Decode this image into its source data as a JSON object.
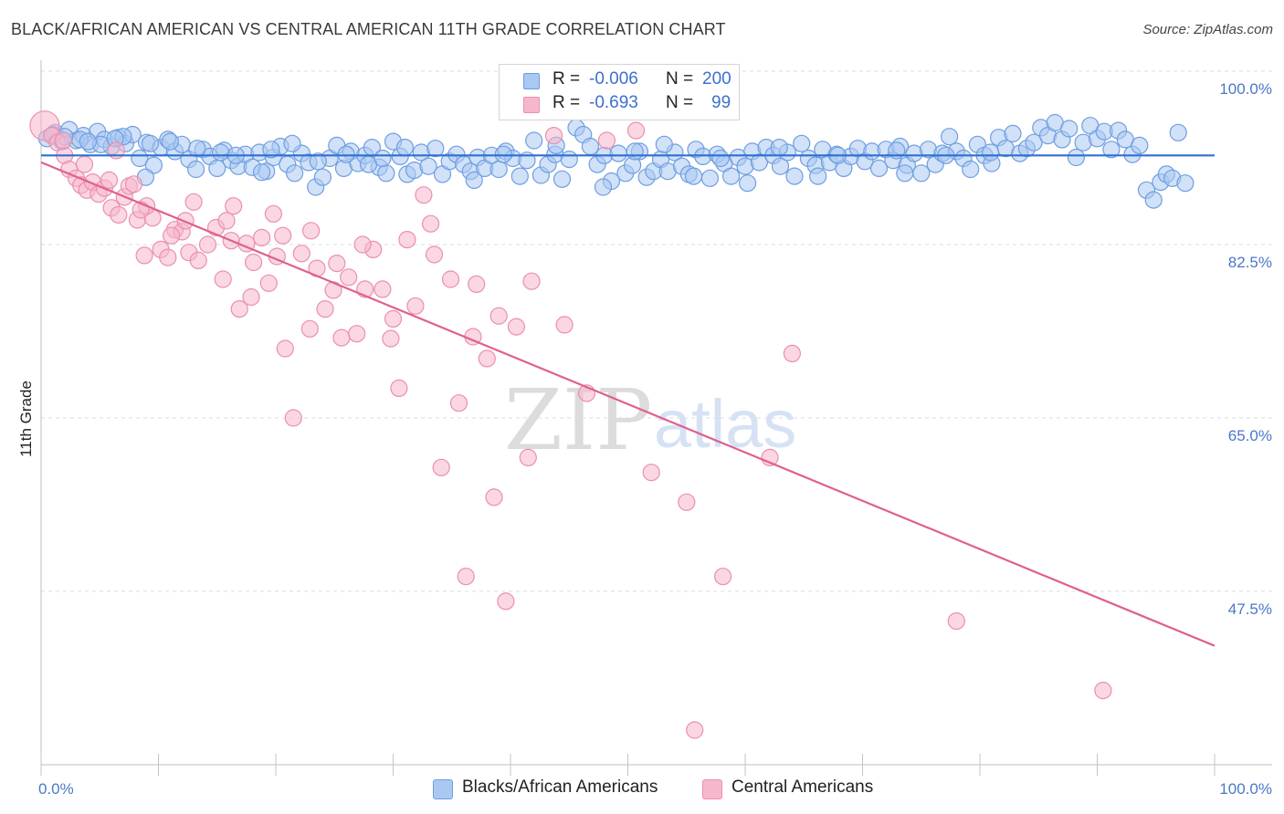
{
  "header": {
    "title": "BLACK/AFRICAN AMERICAN VS CENTRAL AMERICAN 11TH GRADE CORRELATION CHART",
    "source": "Source: ZipAtlas.com"
  },
  "legend": {
    "rows": [
      {
        "r_label": "R =",
        "r_value": "-0.006",
        "n_label": "N =",
        "n_value": "200"
      },
      {
        "r_label": "R =",
        "r_value": "-0.693",
        "n_label": "N =",
        "n_value": "99"
      }
    ]
  },
  "bottom_legend": {
    "items": [
      "Blacks/African Americans",
      "Central Americans"
    ]
  },
  "watermark": {
    "zip": "ZIP",
    "atlas": "atlas"
  },
  "colors": {
    "blue_fill": "#a9c8f2",
    "blue_stroke": "#6f9ee0",
    "blue_line": "#2f6fcf",
    "pink_fill": "#f6b7cc",
    "pink_stroke": "#eb8fae",
    "pink_line": "#e0608e",
    "axis_text": "#4a78c8",
    "grid": "#dddddd"
  },
  "chart_data": {
    "type": "scatter",
    "title": "BLACK/AFRICAN AMERICAN VS CENTRAL AMERICAN 11TH GRADE CORRELATION CHART",
    "xlabel": "",
    "ylabel": "11th Grade",
    "xlim": [
      0,
      100
    ],
    "ylim": [
      30,
      100
    ],
    "x_tick_labels": [
      "0.0%",
      "100.0%"
    ],
    "y_ticks": [
      47.5,
      65.0,
      82.5,
      100.0
    ],
    "y_tick_labels": [
      "47.5%",
      "65.0%",
      "82.5%",
      "100.0%"
    ],
    "grid": true,
    "legend_position": "top-center",
    "series": [
      {
        "name": "Blacks/African Americans",
        "color": "#a9c8f2",
        "trend": {
          "x": [
            0,
            100
          ],
          "y": [
            91.5,
            91.5
          ]
        },
        "points": [
          [
            0.5,
            93.2
          ],
          [
            1.2,
            93.8
          ],
          [
            1.8,
            92.9
          ],
          [
            2.4,
            94.1
          ],
          [
            3.0,
            93.0
          ],
          [
            3.6,
            93.5
          ],
          [
            4.2,
            92.6
          ],
          [
            4.8,
            93.9
          ],
          [
            5.4,
            93.1
          ],
          [
            6.0,
            92.4
          ],
          [
            6.6,
            93.3
          ],
          [
            7.2,
            92.7
          ],
          [
            7.8,
            93.6
          ],
          [
            8.4,
            91.2
          ],
          [
            9.0,
            92.8
          ],
          [
            9.6,
            90.5
          ],
          [
            10.2,
            92.3
          ],
          [
            10.8,
            93.1
          ],
          [
            11.4,
            91.9
          ],
          [
            12.0,
            92.6
          ],
          [
            12.6,
            91.1
          ],
          [
            13.2,
            90.1
          ],
          [
            13.8,
            92.1
          ],
          [
            14.4,
            91.4
          ],
          [
            15.0,
            90.2
          ],
          [
            15.6,
            92.0
          ],
          [
            16.2,
            91.0
          ],
          [
            16.8,
            90.4
          ],
          [
            17.4,
            91.6
          ],
          [
            18.0,
            90.3
          ],
          [
            18.6,
            91.8
          ],
          [
            19.2,
            89.9
          ],
          [
            19.8,
            91.3
          ],
          [
            20.4,
            92.4
          ],
          [
            21.0,
            90.6
          ],
          [
            21.6,
            89.7
          ],
          [
            22.2,
            91.7
          ],
          [
            22.8,
            90.8
          ],
          [
            23.4,
            88.3
          ],
          [
            24.0,
            89.3
          ],
          [
            24.6,
            91.2
          ],
          [
            25.2,
            92.5
          ],
          [
            25.8,
            90.2
          ],
          [
            26.4,
            91.9
          ],
          [
            27.0,
            90.7
          ],
          [
            27.6,
            91.5
          ],
          [
            28.2,
            92.3
          ],
          [
            28.8,
            90.3
          ],
          [
            29.4,
            89.7
          ],
          [
            30.0,
            92.9
          ],
          [
            30.6,
            91.4
          ],
          [
            31.2,
            89.6
          ],
          [
            31.8,
            90.0
          ],
          [
            32.4,
            91.8
          ],
          [
            33.0,
            90.4
          ],
          [
            33.6,
            92.2
          ],
          [
            34.2,
            89.6
          ],
          [
            34.8,
            90.9
          ],
          [
            35.4,
            91.6
          ],
          [
            36.0,
            90.6
          ],
          [
            36.6,
            89.9
          ],
          [
            37.2,
            91.3
          ],
          [
            37.8,
            90.2
          ],
          [
            38.4,
            91.5
          ],
          [
            39.0,
            90.1
          ],
          [
            39.6,
            91.9
          ],
          [
            40.2,
            91.2
          ],
          [
            40.8,
            89.4
          ],
          [
            41.4,
            91.0
          ],
          [
            42.0,
            93.0
          ],
          [
            42.6,
            89.5
          ],
          [
            43.2,
            90.6
          ],
          [
            43.8,
            91.6
          ],
          [
            44.4,
            89.1
          ],
          [
            45.0,
            91.1
          ],
          [
            45.6,
            94.3
          ],
          [
            46.2,
            93.6
          ],
          [
            46.8,
            92.4
          ],
          [
            47.4,
            90.6
          ],
          [
            48.0,
            91.5
          ],
          [
            48.6,
            88.9
          ],
          [
            49.2,
            91.7
          ],
          [
            49.8,
            89.7
          ],
          [
            50.4,
            90.5
          ],
          [
            51.0,
            91.9
          ],
          [
            51.6,
            89.3
          ],
          [
            52.2,
            89.9
          ],
          [
            52.8,
            91.1
          ],
          [
            53.4,
            89.9
          ],
          [
            54.0,
            91.8
          ],
          [
            54.6,
            90.4
          ],
          [
            55.2,
            89.6
          ],
          [
            55.8,
            92.1
          ],
          [
            56.4,
            91.4
          ],
          [
            57.0,
            89.2
          ],
          [
            57.6,
            91.6
          ],
          [
            58.2,
            90.7
          ],
          [
            58.8,
            89.4
          ],
          [
            59.4,
            91.3
          ],
          [
            60.0,
            90.4
          ],
          [
            60.6,
            91.9
          ],
          [
            61.2,
            90.8
          ],
          [
            61.8,
            92.3
          ],
          [
            62.4,
            91.5
          ],
          [
            63.0,
            90.4
          ],
          [
            63.6,
            91.8
          ],
          [
            64.2,
            89.4
          ],
          [
            64.8,
            92.7
          ],
          [
            65.4,
            91.2
          ],
          [
            66.0,
            90.5
          ],
          [
            66.6,
            92.1
          ],
          [
            67.2,
            90.8
          ],
          [
            67.8,
            91.6
          ],
          [
            68.4,
            90.2
          ],
          [
            69.0,
            91.4
          ],
          [
            69.6,
            92.2
          ],
          [
            70.2,
            90.9
          ],
          [
            70.8,
            91.9
          ],
          [
            71.4,
            90.2
          ],
          [
            72.0,
            92.1
          ],
          [
            72.6,
            91.0
          ],
          [
            73.2,
            92.4
          ],
          [
            73.8,
            90.5
          ],
          [
            74.4,
            91.7
          ],
          [
            75.0,
            89.7
          ],
          [
            75.6,
            92.1
          ],
          [
            76.2,
            90.6
          ],
          [
            76.8,
            91.7
          ],
          [
            77.4,
            93.4
          ],
          [
            78.0,
            91.9
          ],
          [
            78.6,
            91.2
          ],
          [
            79.2,
            90.1
          ],
          [
            79.8,
            92.6
          ],
          [
            80.4,
            91.5
          ],
          [
            81.0,
            90.7
          ],
          [
            81.6,
            93.3
          ],
          [
            82.2,
            92.2
          ],
          [
            82.8,
            93.7
          ],
          [
            83.4,
            91.7
          ],
          [
            84.0,
            92.2
          ],
          [
            84.6,
            92.8
          ],
          [
            85.2,
            94.3
          ],
          [
            85.8,
            93.5
          ],
          [
            86.4,
            94.8
          ],
          [
            87.0,
            93.1
          ],
          [
            87.6,
            94.2
          ],
          [
            88.2,
            91.3
          ],
          [
            88.8,
            92.8
          ],
          [
            89.4,
            94.5
          ],
          [
            90.0,
            93.2
          ],
          [
            90.6,
            93.9
          ],
          [
            91.2,
            92.1
          ],
          [
            91.8,
            94.0
          ],
          [
            92.4,
            93.1
          ],
          [
            93.0,
            91.6
          ],
          [
            93.6,
            92.5
          ],
          [
            94.2,
            88.0
          ],
          [
            94.8,
            87.0
          ],
          [
            95.4,
            88.8
          ],
          [
            95.9,
            89.6
          ],
          [
            96.4,
            89.2
          ],
          [
            96.9,
            93.8
          ],
          [
            97.5,
            88.7
          ],
          [
            8.9,
            89.3
          ],
          [
            18.8,
            89.8
          ],
          [
            27.9,
            90.6
          ],
          [
            36.9,
            89.0
          ],
          [
            47.9,
            88.3
          ],
          [
            55.6,
            89.4
          ],
          [
            60.2,
            88.7
          ],
          [
            66.2,
            89.4
          ],
          [
            73.6,
            89.7
          ],
          [
            3.3,
            93.1
          ],
          [
            5.1,
            92.6
          ],
          [
            7.0,
            93.4
          ],
          [
            11.0,
            92.9
          ],
          [
            15.3,
            91.8
          ],
          [
            21.4,
            92.7
          ],
          [
            26.0,
            91.6
          ],
          [
            31.0,
            92.3
          ],
          [
            39.4,
            91.6
          ],
          [
            43.9,
            92.5
          ],
          [
            50.6,
            91.9
          ],
          [
            53.1,
            92.6
          ],
          [
            57.9,
            91.2
          ],
          [
            62.9,
            92.3
          ],
          [
            67.9,
            91.5
          ],
          [
            72.9,
            92.0
          ],
          [
            77.1,
            91.5
          ],
          [
            80.9,
            91.8
          ],
          [
            1.0,
            93.6
          ],
          [
            2.0,
            93.4
          ],
          [
            4.0,
            92.9
          ],
          [
            6.3,
            93.2
          ],
          [
            9.3,
            92.7
          ],
          [
            13.3,
            92.2
          ],
          [
            16.6,
            91.5
          ],
          [
            19.6,
            92.1
          ],
          [
            23.6,
            90.9
          ],
          [
            29.1,
            91.2
          ]
        ]
      },
      {
        "name": "Central Americans",
        "color": "#f6b7cc",
        "trend": {
          "x": [
            0,
            100
          ],
          "y": [
            90.8,
            42.0
          ]
        },
        "points": [
          [
            0.3,
            94.5
          ],
          [
            0.9,
            93.5
          ],
          [
            1.4,
            92.8
          ],
          [
            2.0,
            91.5
          ],
          [
            2.4,
            90.1
          ],
          [
            3.0,
            89.2
          ],
          [
            3.4,
            88.5
          ],
          [
            3.9,
            88.0
          ],
          [
            4.4,
            88.8
          ],
          [
            4.9,
            87.6
          ],
          [
            5.4,
            88.2
          ],
          [
            6.0,
            86.2
          ],
          [
            6.6,
            85.5
          ],
          [
            7.1,
            87.3
          ],
          [
            7.5,
            88.4
          ],
          [
            8.2,
            85.0
          ],
          [
            8.8,
            81.4
          ],
          [
            9.5,
            85.2
          ],
          [
            10.2,
            82.0
          ],
          [
            10.8,
            81.2
          ],
          [
            11.4,
            84.0
          ],
          [
            12.0,
            83.8
          ],
          [
            12.6,
            81.7
          ],
          [
            13.4,
            80.9
          ],
          [
            14.2,
            82.5
          ],
          [
            14.9,
            84.2
          ],
          [
            15.5,
            79.0
          ],
          [
            16.2,
            82.9
          ],
          [
            16.9,
            76.0
          ],
          [
            17.5,
            82.6
          ],
          [
            18.1,
            80.7
          ],
          [
            18.8,
            83.2
          ],
          [
            19.4,
            78.6
          ],
          [
            20.1,
            81.3
          ],
          [
            20.8,
            72.0
          ],
          [
            21.5,
            65.0
          ],
          [
            22.2,
            81.6
          ],
          [
            22.9,
            74.0
          ],
          [
            23.5,
            80.1
          ],
          [
            24.2,
            76.0
          ],
          [
            24.9,
            77.9
          ],
          [
            25.6,
            73.1
          ],
          [
            26.2,
            79.2
          ],
          [
            26.9,
            73.5
          ],
          [
            27.6,
            78.0
          ],
          [
            28.3,
            82.0
          ],
          [
            29.1,
            78.0
          ],
          [
            29.8,
            73.0
          ],
          [
            30.5,
            68.0
          ],
          [
            31.2,
            83.0
          ],
          [
            31.9,
            76.3
          ],
          [
            32.6,
            87.5
          ],
          [
            33.5,
            81.5
          ],
          [
            34.1,
            60.0
          ],
          [
            34.9,
            79.0
          ],
          [
            35.6,
            66.5
          ],
          [
            36.2,
            49.0
          ],
          [
            37.1,
            78.5
          ],
          [
            38.0,
            71.0
          ],
          [
            38.6,
            57.0
          ],
          [
            39.6,
            46.5
          ],
          [
            40.5,
            74.2
          ],
          [
            41.5,
            61.0
          ],
          [
            43.7,
            93.5
          ],
          [
            46.5,
            67.5
          ],
          [
            48.2,
            93.0
          ],
          [
            50.7,
            94.0
          ],
          [
            52.0,
            59.5
          ],
          [
            55.0,
            56.5
          ],
          [
            55.7,
            33.5
          ],
          [
            58.1,
            49.0
          ],
          [
            62.1,
            61.0
          ],
          [
            64.0,
            71.5
          ],
          [
            6.4,
            92.0
          ],
          [
            7.9,
            88.6
          ],
          [
            9.0,
            86.4
          ],
          [
            11.1,
            83.4
          ],
          [
            13.0,
            86.8
          ],
          [
            15.8,
            84.9
          ],
          [
            17.9,
            77.2
          ],
          [
            19.8,
            85.6
          ],
          [
            23.0,
            83.9
          ],
          [
            25.2,
            80.6
          ],
          [
            27.4,
            82.5
          ],
          [
            30.0,
            75.0
          ],
          [
            33.2,
            84.6
          ],
          [
            36.8,
            73.2
          ],
          [
            39.0,
            75.3
          ],
          [
            41.8,
            78.8
          ],
          [
            44.6,
            74.4
          ],
          [
            1.9,
            93.0
          ],
          [
            3.7,
            90.6
          ],
          [
            5.8,
            89.0
          ],
          [
            8.5,
            86.0
          ],
          [
            12.3,
            84.9
          ],
          [
            16.4,
            86.4
          ],
          [
            20.6,
            83.4
          ],
          [
            78.0,
            44.5
          ],
          [
            90.5,
            37.5
          ]
        ]
      }
    ]
  }
}
